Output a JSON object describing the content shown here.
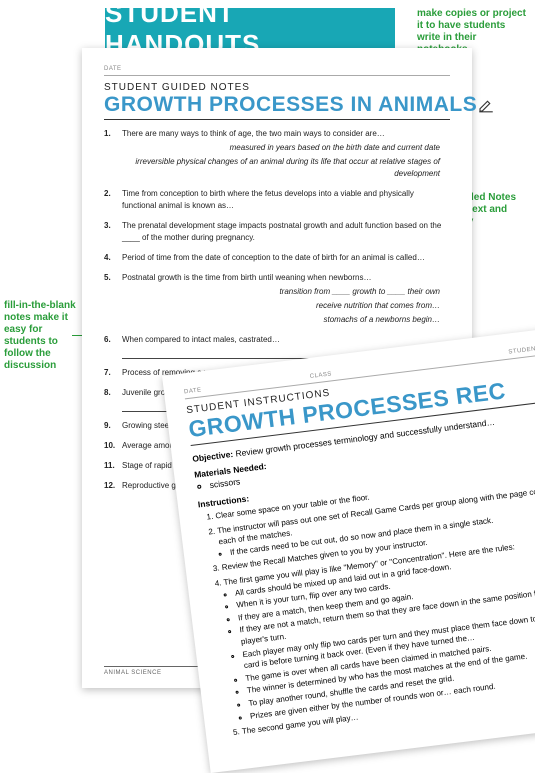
{
  "banner": "STUDENT HANDOUTS",
  "annotations": {
    "top_right": "make copies or project it to have students write in their notebooks",
    "mid_right": "Student Guided Notes match slide text and order exactly",
    "mid_left": "fill-in-the-blank notes make it easy for students to follow the discussion"
  },
  "colors": {
    "banner_bg": "#18a7b5",
    "banner_text": "#ffffff",
    "title_color": "#3a97c9",
    "annotation_color": "#2a9d3a",
    "body_text": "#222222"
  },
  "sheet1": {
    "head": [
      "DATE",
      "",
      ""
    ],
    "subheading": "STUDENT GUIDED NOTES",
    "title": "GROWTH PROCESSES IN ANIMALS",
    "footer": "ANIMAL SCIENCE",
    "items": [
      {
        "n": "1.",
        "t": "There are many ways to think of age, the two main ways to consider are…",
        "i1": "measured in years based on the birth date and current date",
        "i2": "irreversible physical changes of an animal during its life that occur at relative stages of development"
      },
      {
        "n": "2.",
        "t": "Time from conception to birth where the fetus develops into a viable and physically functional animal is known as…"
      },
      {
        "n": "3.",
        "t": "The prenatal development stage impacts postnatal growth and adult function based on the ____ of the mother during pregnancy."
      },
      {
        "n": "4.",
        "t": "Period of time from the date of conception to the date of birth for an animal is called…"
      },
      {
        "n": "5.",
        "t": "Postnatal growth is the time from birth until weaning when newborns…",
        "i1": "transition from ____ growth to ____ their own",
        "i2": "receive nutrition that comes from…",
        "i3": "stomachs of a newborns begin…"
      },
      {
        "n": "6.",
        "t": "When compared to intact males, castrated…",
        "line": true
      },
      {
        "n": "7.",
        "t": "Process of removing a young animal from… is called…"
      },
      {
        "n": "8.",
        "t": "Juvenile growth focuses on increasing… growth but stressors that reduce growth…",
        "line": true
      },
      {
        "n": "9.",
        "t": "Growing steers and heifers from weaning… called…"
      },
      {
        "n": "10.",
        "t": "Average amount of weight (mostly…) the feeding period is called…"
      },
      {
        "n": "11.",
        "t": "Stage of rapid physical growth for… known as ____ growth."
      },
      {
        "n": "12.",
        "t": "Reproductive growth takes over… established:"
      }
    ]
  },
  "sheet2": {
    "head": [
      "DATE",
      "CLASS",
      "STUDENT NAME"
    ],
    "subheading": "STUDENT INSTRUCTIONS",
    "title": "GROWTH PROCESSES REC",
    "objective_label": "Objective:",
    "objective_text": "Review growth processes terminology and successfully understand…",
    "materials_label": "Materials Needed:",
    "materials": [
      "scissors"
    ],
    "instructions_label": "Instructions:",
    "instructions": [
      {
        "t": "Clear some space on your table or the floor."
      },
      {
        "t": "The instructor will pass out one set of Recall Game Cards per group along with the page containing each of the matches.",
        "sub": [
          "If the cards need to be cut out, do so now and place them in a single stack."
        ]
      },
      {
        "t": "Review the Recall Matches given to you by your instructor."
      },
      {
        "t": "The first game you will play is like \"Memory\" or \"Concentration\". Here are the rules:",
        "sub": [
          "All cards should be mixed up and laid out in a grid face-down.",
          "When it is your turn, flip over any two cards.",
          "If they are a match, then keep them and go again.",
          "If they are not a match, return them so that they are face down in the same position for the next player's turn.",
          "Each player may only flip two cards per turn and they must place them face down to see what the card is before turning it back over. (Even if they have turned the…",
          "The game is over when all cards have been claimed in matched pairs.",
          "The winner is determined by who has the most matches at the end of the game.",
          "To play another round, shuffle the cards and reset the grid.",
          "Prizes are given either by the number of rounds won or… each round."
        ]
      },
      {
        "t": "The second game you will play…"
      }
    ]
  }
}
